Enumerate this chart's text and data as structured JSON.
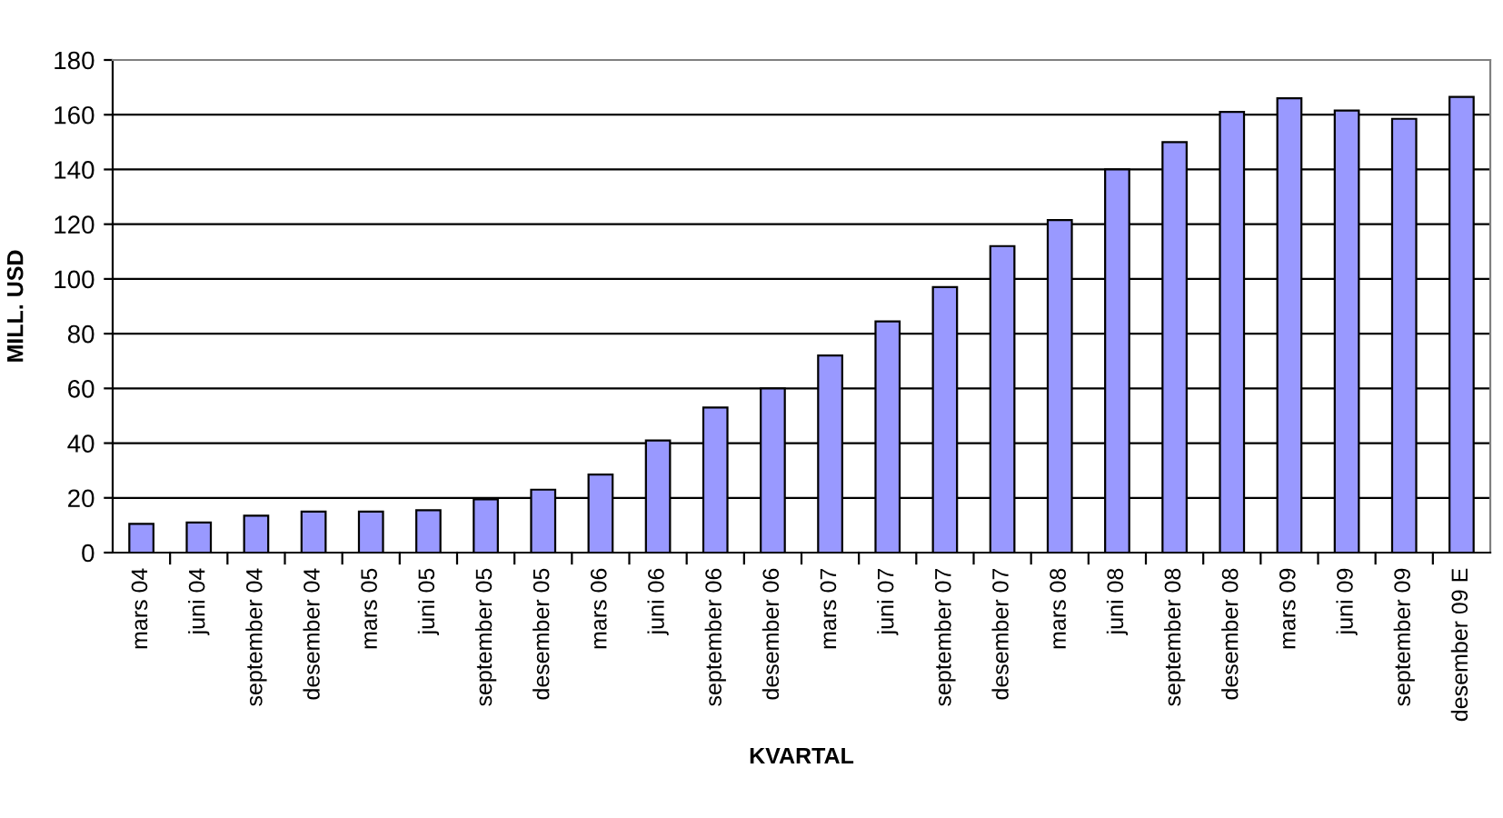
{
  "chart_data": {
    "type": "bar",
    "xlabel": "KVARTAL",
    "ylabel": "MILL. USD",
    "categories": [
      "mars 04",
      "juni 04",
      "september 04",
      "desember 04",
      "mars 05",
      "juni 05",
      "september 05",
      "desember 05",
      "mars 06",
      "juni 06",
      "september 06",
      "desember 06",
      "mars 07",
      "juni 07",
      "september 07",
      "desember 07",
      "mars 08",
      "juni 08",
      "september 08",
      "desember 08",
      "mars 09",
      "juni 09",
      "september 09",
      "desember 09 E"
    ],
    "values": [
      10.5,
      11,
      13.5,
      15,
      15,
      15.5,
      19.5,
      23,
      28.5,
      41,
      53,
      60,
      72,
      84.5,
      97,
      112,
      121.5,
      140,
      150,
      161,
      166,
      161.5,
      158.5,
      166.5
    ],
    "color": "#9999ff",
    "ylim": [
      0,
      180
    ],
    "yticks": [
      0,
      20,
      40,
      60,
      80,
      100,
      120,
      140,
      160,
      180
    ],
    "grid": "y"
  }
}
